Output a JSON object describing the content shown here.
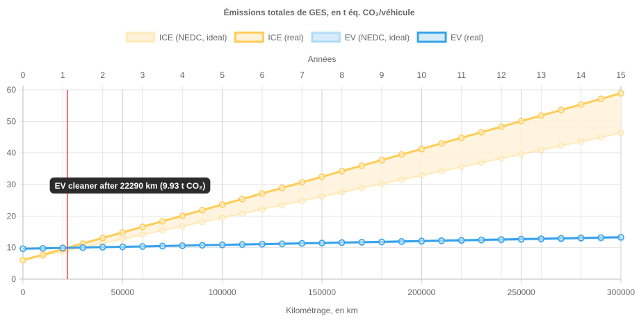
{
  "chart_data": {
    "type": "line",
    "title": "Émissions totales de GES, en t éq. CO₂/véhicule",
    "xlabel": "Kilométrage, en km",
    "x2label": "Années",
    "xlim": [
      0,
      300000
    ],
    "x2lim": [
      0,
      15
    ],
    "ylim": [
      0,
      60
    ],
    "xticks": [
      0,
      50000,
      100000,
      150000,
      200000,
      250000,
      300000
    ],
    "x2ticks": [
      0,
      1,
      2,
      3,
      4,
      5,
      6,
      7,
      8,
      9,
      10,
      11,
      12,
      13,
      14,
      15
    ],
    "yticks": [
      0,
      10,
      20,
      30,
      40,
      50,
      60
    ],
    "grid": true,
    "legend_position": "top",
    "x": [
      0,
      10000,
      20000,
      30000,
      40000,
      50000,
      60000,
      70000,
      80000,
      90000,
      100000,
      110000,
      120000,
      130000,
      140000,
      150000,
      160000,
      170000,
      180000,
      190000,
      200000,
      210000,
      220000,
      230000,
      240000,
      250000,
      260000,
      270000,
      280000,
      290000,
      300000
    ],
    "series": [
      {
        "name": "ICE (NEDC, ideal)",
        "color": "#ffcd56",
        "fill": "#fff2d9",
        "values": [
          6.0,
          7.34,
          8.69,
          10.03,
          11.37,
          12.72,
          14.06,
          15.4,
          16.74,
          18.09,
          19.43,
          20.77,
          22.12,
          23.46,
          24.8,
          26.15,
          27.49,
          28.83,
          30.17,
          31.52,
          32.86,
          34.2,
          35.55,
          36.89,
          38.23,
          39.58,
          40.92,
          42.26,
          43.6,
          44.95,
          46.29
        ]
      },
      {
        "name": "ICE (real)",
        "color": "#ffcd56",
        "fill": "#fff2d9",
        "values": [
          6.0,
          7.76,
          9.53,
          11.29,
          13.05,
          14.82,
          16.58,
          18.34,
          20.1,
          21.87,
          23.63,
          25.39,
          27.16,
          28.92,
          30.68,
          32.45,
          34.21,
          35.97,
          37.73,
          39.5,
          41.26,
          43.02,
          44.79,
          46.55,
          48.31,
          50.08,
          51.84,
          53.6,
          55.36,
          57.13,
          58.89
        ]
      },
      {
        "name": "EV (NEDC, ideal)",
        "color": "#36a2eb",
        "fill": "#d7ecfb",
        "values": [
          9.6,
          9.71,
          9.83,
          9.94,
          10.05,
          10.17,
          10.28,
          10.39,
          10.5,
          10.62,
          10.73,
          10.84,
          10.96,
          11.07,
          11.18,
          11.3,
          11.41,
          11.52,
          11.63,
          11.75,
          11.86,
          11.97,
          12.09,
          12.2,
          12.31,
          12.43,
          12.54,
          12.65,
          12.76,
          12.88,
          12.99
        ]
      },
      {
        "name": "EV (real)",
        "color": "#36a2eb",
        "fill": "#d7ecfb",
        "values": [
          9.65,
          9.77,
          9.89,
          10.02,
          10.14,
          10.26,
          10.38,
          10.5,
          10.62,
          10.75,
          10.87,
          10.99,
          11.11,
          11.23,
          11.35,
          11.48,
          11.6,
          11.72,
          11.84,
          11.96,
          12.08,
          12.21,
          12.33,
          12.45,
          12.57,
          12.7,
          12.82,
          12.94,
          13.06,
          13.18,
          13.3
        ]
      }
    ],
    "annotation": {
      "x": 22290,
      "y": 9.93,
      "label": "EV cleaner after 22290 km (9.93 t CO₂)",
      "line_color": "#ff3b3b"
    }
  }
}
